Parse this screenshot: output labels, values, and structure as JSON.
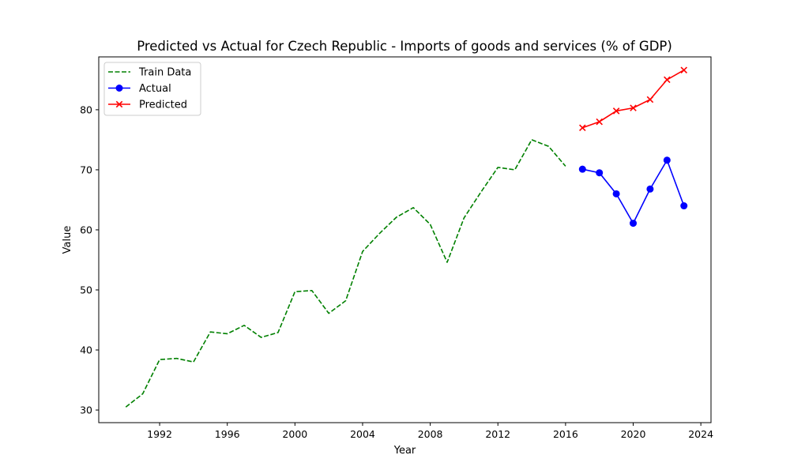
{
  "chart_data": {
    "type": "line",
    "title": "Predicted vs Actual for Czech Republic - Imports of goods and services (% of GDP)",
    "xlabel": "Year",
    "ylabel": "Value",
    "xlim": [
      1988.4,
      2024.6
    ],
    "ylim": [
      27.9,
      88.8
    ],
    "xticks": [
      1992,
      1996,
      2000,
      2004,
      2008,
      2012,
      2016,
      2020,
      2024
    ],
    "yticks": [
      30,
      40,
      50,
      60,
      70,
      80
    ],
    "grid": false,
    "legend_position": "upper-left",
    "series": [
      {
        "name": "Train Data",
        "color": "#008000",
        "style": "dashed",
        "marker": "none",
        "x": [
          1990,
          1991,
          1992,
          1993,
          1994,
          1995,
          1996,
          1997,
          1998,
          1999,
          2000,
          2001,
          2002,
          2003,
          2004,
          2005,
          2006,
          2007,
          2008,
          2009,
          2010,
          2011,
          2012,
          2013,
          2014,
          2015,
          2016
        ],
        "y": [
          30.5,
          32.7,
          38.4,
          38.6,
          38.0,
          43.0,
          42.7,
          44.1,
          42.1,
          42.9,
          49.7,
          49.9,
          46.1,
          48.2,
          56.4,
          59.4,
          62.1,
          63.7,
          60.9,
          54.6,
          62.0,
          66.3,
          70.4,
          70.0,
          75.0,
          73.9,
          70.6
        ]
      },
      {
        "name": "Actual",
        "color": "#0000ff",
        "style": "solid",
        "marker": "circle",
        "x": [
          2017,
          2018,
          2019,
          2020,
          2021,
          2022,
          2023
        ],
        "y": [
          70.1,
          69.5,
          66.0,
          61.1,
          66.8,
          71.6,
          64.0
        ]
      },
      {
        "name": "Predicted",
        "color": "#ff0000",
        "style": "solid",
        "marker": "x",
        "x": [
          2017,
          2018,
          2019,
          2020,
          2021,
          2022,
          2023
        ],
        "y": [
          77.0,
          78.0,
          79.8,
          80.3,
          81.7,
          85.0,
          86.6
        ]
      }
    ]
  }
}
